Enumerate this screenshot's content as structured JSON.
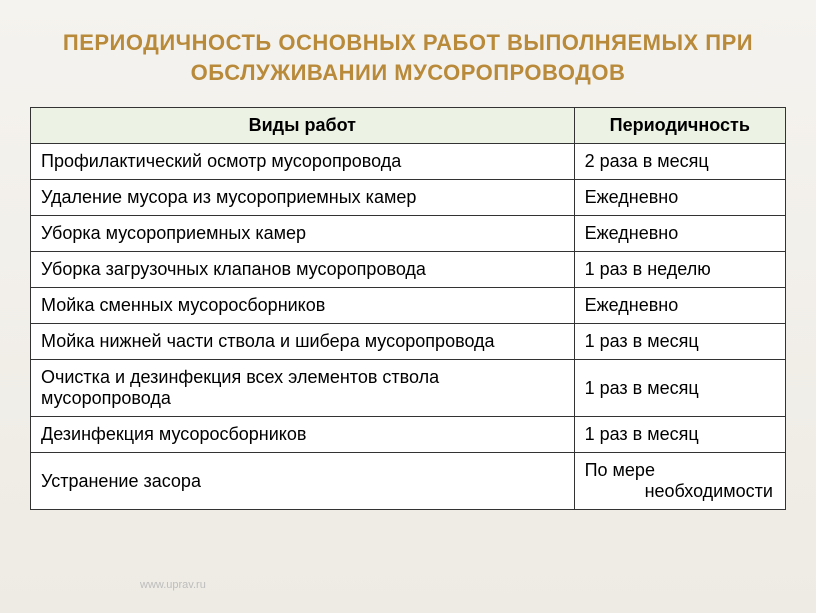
{
  "title": {
    "line1": "ПЕРИОДИЧНОСТЬ ОСНОВНЫХ РАБОТ ВЫПОЛНЯЕМЫХ ПРИ",
    "line2": "ОБСЛУЖИВАНИИ МУСОРОПРОВОДОВ",
    "color": "#b88a3a",
    "fontsize": 22
  },
  "table": {
    "header_bg": "#ecf3e5",
    "border_color": "#333333",
    "cell_fontsize": 18,
    "columns": [
      {
        "label": "Виды работ",
        "width_pct": 72
      },
      {
        "label": "Периодичность",
        "width_pct": 28
      }
    ],
    "rows": [
      {
        "work": "Профилактический осмотр мусоропровода",
        "freq": "2 раза в месяц"
      },
      {
        "work": "Удаление мусора из мусороприемных камер",
        "freq": "Ежедневно"
      },
      {
        "work": "Уборка мусороприемных камер",
        "freq": "Ежедневно"
      },
      {
        "work": "Уборка загрузочных клапанов мусоропровода",
        "freq": "1 раз в неделю"
      },
      {
        "work": "Мойка сменных мусоросборников",
        "freq": "Ежедневно"
      },
      {
        "work": "Мойка нижней части ствола и шибера мусоропровода",
        "freq": "1 раз в месяц"
      },
      {
        "work": "Очистка и дезинфекция всех элементов ствола мусоропровода",
        "freq": "1 раз в месяц"
      },
      {
        "work": "Дезинфекция мусоросборников",
        "freq": "1 раз в месяц"
      },
      {
        "work": "Устранение засора",
        "freq": "По мере",
        "freq_line2": "необходимости"
      }
    ]
  },
  "watermark": "www.uprav.ru",
  "background_color": "#f3f1ec"
}
